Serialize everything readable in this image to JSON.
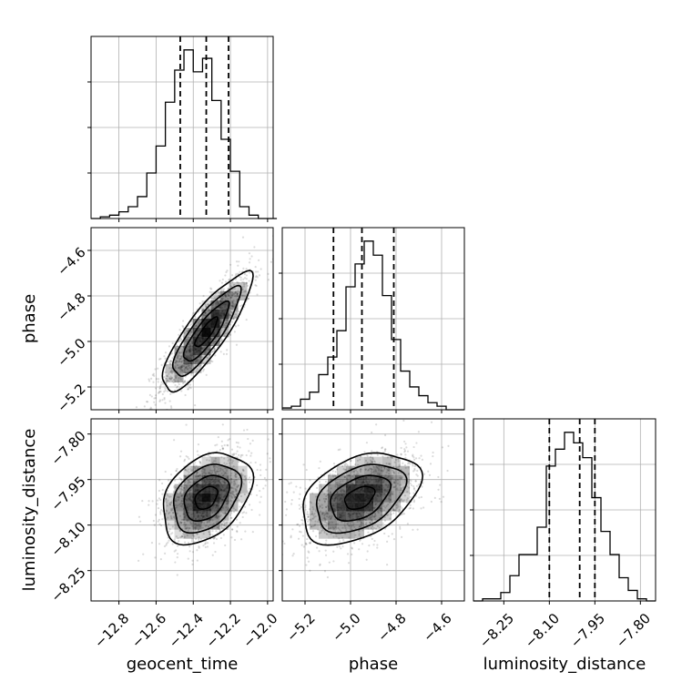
{
  "chart_data": {
    "type": "corner",
    "parameters": [
      "geocent_time",
      "phase",
      "luminosity_distance"
    ],
    "grid": true,
    "ranges": {
      "geocent_time": [
        -12.95,
        -11.97
      ],
      "phase": [
        -5.3,
        -4.5
      ],
      "luminosity_distance": [
        -8.35,
        -7.75
      ]
    },
    "ticks": {
      "geocent_time": [
        {
          "value": -12.8,
          "label": "−12.8"
        },
        {
          "value": -12.6,
          "label": "−12.6"
        },
        {
          "value": -12.4,
          "label": "−12.4"
        },
        {
          "value": -12.2,
          "label": "−12.2"
        },
        {
          "value": -12.0,
          "label": "−12.0"
        }
      ],
      "phase": [
        {
          "value": -5.2,
          "label": "−5.2"
        },
        {
          "value": -5.0,
          "label": "−5.0"
        },
        {
          "value": -4.8,
          "label": "−4.8"
        },
        {
          "value": -4.6,
          "label": "−4.6"
        }
      ],
      "luminosity_distance": [
        {
          "value": -8.25,
          "label": "−8.25"
        },
        {
          "value": -8.1,
          "label": "−8.10"
        },
        {
          "value": -7.95,
          "label": "−7.95"
        },
        {
          "value": -7.8,
          "label": "−7.80"
        }
      ]
    },
    "marginals": [
      {
        "param": "geocent_time",
        "bin_edges": [
          -12.95,
          -12.9,
          -12.85,
          -12.8,
          -12.75,
          -12.7,
          -12.65,
          -12.6,
          -12.55,
          -12.5,
          -12.45,
          -12.4,
          -12.35,
          -12.3,
          -12.25,
          -12.2,
          -12.15,
          -12.1,
          -12.05,
          -12.0,
          -11.95
        ],
        "counts": [
          0,
          1,
          2,
          4,
          7,
          13,
          27,
          43,
          69,
          88,
          100,
          87,
          95,
          70,
          47,
          28,
          7,
          2,
          0,
          0
        ],
        "quantiles": [
          -12.47,
          -12.33,
          -12.21
        ]
      },
      {
        "param": "phase",
        "bin_edges": [
          -5.3,
          -5.26,
          -5.22,
          -5.18,
          -5.14,
          -5.1,
          -5.06,
          -5.02,
          -4.98,
          -4.94,
          -4.9,
          -4.86,
          -4.82,
          -4.78,
          -4.74,
          -4.7,
          -4.66,
          -4.62,
          -4.58,
          -4.54,
          -4.5
        ],
        "counts": [
          1,
          2,
          6,
          10,
          20,
          30,
          45,
          70,
          83,
          96,
          88,
          65,
          40,
          22,
          13,
          8,
          4,
          2,
          0,
          0
        ],
        "quantiles": [
          -5.075,
          -4.95,
          -4.81
        ]
      },
      {
        "param": "luminosity_distance",
        "bin_edges": [
          -8.35,
          -8.32,
          -8.29,
          -8.26,
          -8.23,
          -8.2,
          -8.17,
          -8.14,
          -8.11,
          -8.08,
          -8.05,
          -8.02,
          -7.99,
          -7.96,
          -7.93,
          -7.9,
          -7.87,
          -7.84,
          -7.81,
          -7.78,
          -7.75
        ],
        "counts": [
          0,
          1,
          1,
          4,
          12,
          22,
          22,
          35,
          64,
          72,
          80,
          75,
          68,
          49,
          33,
          22,
          11,
          5,
          1,
          0
        ],
        "quantiles": [
          -8.1,
          -8.0,
          -7.95
        ]
      }
    ],
    "joint": [
      {
        "x": "geocent_time",
        "y": "phase",
        "center": [
          -12.33,
          -4.96
        ],
        "sigma": [
          0.12,
          0.13
        ],
        "correlation": 0.85
      },
      {
        "x": "geocent_time",
        "y": "luminosity_distance",
        "center": [
          -12.33,
          -8.01
        ],
        "sigma": [
          0.12,
          0.075
        ],
        "correlation": 0.35
      },
      {
        "x": "phase",
        "y": "luminosity_distance",
        "center": [
          -4.96,
          -8.01
        ],
        "sigma": [
          0.13,
          0.075
        ],
        "correlation": 0.4
      }
    ],
    "contour_levels_sigma": [
      0.5,
      1.0,
      1.5,
      2.0
    ]
  }
}
